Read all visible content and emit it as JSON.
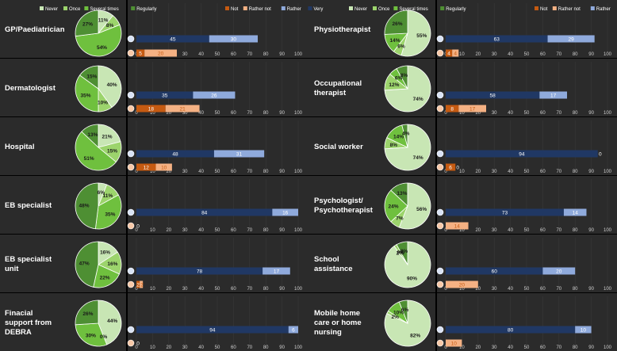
{
  "legends": {
    "pie": [
      {
        "label": "Never",
        "color": "#c8e6b4"
      },
      {
        "label": "Once",
        "color": "#9cd46c"
      },
      {
        "label": "Several times",
        "color": "#6fc03e"
      },
      {
        "label": "Regularly",
        "color": "#4e8f33"
      }
    ],
    "bar": [
      {
        "label": "Not",
        "color": "#c55a11"
      },
      {
        "label": "Rather not",
        "color": "#f4b183"
      },
      {
        "label": "Rather",
        "color": "#8faadc"
      },
      {
        "label": "Very",
        "color": "#203864"
      }
    ]
  },
  "axis_ticks": [
    "0",
    "10",
    "20",
    "30",
    "40",
    "50",
    "60",
    "70",
    "80",
    "90",
    "100"
  ],
  "colors": {
    "never": "#c8e6b4",
    "once": "#9cd46c",
    "several": "#6fc03e",
    "regularly": "#4e8f33",
    "not": "#c55a11",
    "rather_not": "#f4b183",
    "rather": "#8faadc",
    "very": "#203864",
    "panel": "#2b2b2b",
    "axis_text": "#cfcfcf",
    "label_text": "#ffffff"
  },
  "chart_data": [
    {
      "type": "pie+bar",
      "title": "GP/Paediatrician",
      "pie": {
        "never": 11,
        "once": 8,
        "several": 54,
        "regularly": 27,
        "labels": [
          "11%",
          "8%",
          "54%",
          "27%"
        ]
      },
      "bars": {
        "very": 45,
        "rather": 30,
        "not": 5,
        "rather_not": 20
      },
      "bar_labels": {
        "very": "45",
        "rather": "30",
        "not": "5",
        "rather_not": "20"
      },
      "xlim": [
        0,
        100
      ]
    },
    {
      "type": "pie+bar",
      "title": "Dermatologist",
      "pie": {
        "never": 40,
        "once": 10,
        "several": 35,
        "regularly": 15,
        "labels": [
          "40%",
          "10%",
          "35%",
          "15%"
        ]
      },
      "bars": {
        "very": 35,
        "rather": 26,
        "not": 18,
        "rather_not": 21
      },
      "bar_labels": {
        "very": "35",
        "rather": "26",
        "not": "18",
        "rather_not": "21"
      },
      "xlim": [
        0,
        100
      ]
    },
    {
      "type": "pie+bar",
      "title": "Hospital",
      "pie": {
        "never": 21,
        "once": 15,
        "several": 51,
        "regularly": 13,
        "labels": [
          "21%",
          "15%",
          "51%",
          "13%"
        ]
      },
      "bars": {
        "very": 48,
        "rather": 31,
        "not": 12,
        "rather_not": 10
      },
      "bar_labels": {
        "very": "48",
        "rather": "31",
        "not": "12",
        "rather_not": "10"
      },
      "xlim": [
        0,
        100
      ]
    },
    {
      "type": "pie+bar",
      "title": "EB specialist",
      "pie": {
        "never": 6,
        "once": 11,
        "several": 35,
        "regularly": 48,
        "labels": [
          "6%",
          "11%",
          "35%",
          "48%"
        ]
      },
      "bars": {
        "very": 84,
        "rather": 16,
        "not": 0,
        "rather_not": 0
      },
      "bar_labels": {
        "very": "84",
        "rather": "16",
        "not": "0",
        "rather_not": ""
      },
      "xlim": [
        0,
        100
      ]
    },
    {
      "type": "pie+bar",
      "title": "EB specialist unit",
      "pie": {
        "never": 16,
        "once": 16,
        "several": 22,
        "regularly": 47,
        "labels": [
          "16%",
          "16%",
          "22%",
          "47%"
        ]
      },
      "bars": {
        "very": 78,
        "rather": 17,
        "not": 2,
        "rather_not": 2
      },
      "bar_labels": {
        "very": "78",
        "rather": "17",
        "not": "2",
        "rather_not": "2"
      },
      "xlim": [
        0,
        100
      ]
    },
    {
      "type": "pie+bar",
      "title": "Finacial support from DEBRA",
      "pie": {
        "never": 44,
        "once": 0,
        "several": 30,
        "regularly": 26,
        "labels": [
          "44%",
          "0%",
          "30%",
          "26%"
        ]
      },
      "bars": {
        "very": 94,
        "rather": 6,
        "not": 0,
        "rather_not": 0
      },
      "bar_labels": {
        "very": "94",
        "rather": "6",
        "not": "0",
        "rather_not": ""
      },
      "xlim": [
        0,
        100
      ]
    },
    {
      "type": "pie+bar",
      "title": "Physiotherapist",
      "pie": {
        "never": 55,
        "once": 6,
        "several": 14,
        "regularly": 26,
        "labels": [
          "55%",
          "6%",
          "14%",
          "26%"
        ]
      },
      "bars": {
        "very": 63,
        "rather": 29,
        "not": 4,
        "rather_not": 4
      },
      "bar_labels": {
        "very": "63",
        "rather": "29",
        "not": "4",
        "rather_not": "4"
      },
      "xlim": [
        0,
        100
      ]
    },
    {
      "type": "pie+bar",
      "title": "Occupational therapist",
      "pie": {
        "never": 74,
        "once": 12,
        "several": 6,
        "regularly": 8,
        "labels": [
          "74%",
          "12%",
          "6%",
          "8%"
        ]
      },
      "bars": {
        "very": 58,
        "rather": 17,
        "not": 8,
        "rather_not": 17
      },
      "bar_labels": {
        "very": "58",
        "rather": "17",
        "not": "8",
        "rather_not": "17"
      },
      "xlim": [
        0,
        100
      ]
    },
    {
      "type": "pie+bar",
      "title": "Social worker",
      "pie": {
        "never": 74,
        "once": 8,
        "several": 14,
        "regularly": 4,
        "labels": [
          "74%",
          "8%",
          "14%",
          "4%"
        ]
      },
      "bars": {
        "very": 94,
        "rather": 0,
        "not": 6,
        "rather_not": 0
      },
      "bar_labels": {
        "very": "94",
        "rather": "0",
        "not": "6",
        "rather_not": "0"
      },
      "xlim": [
        0,
        100
      ]
    },
    {
      "type": "pie+bar",
      "title": "Psychologist/ Psychotherapist",
      "pie": {
        "never": 56,
        "once": 7,
        "several": 24,
        "regularly": 13,
        "labels": [
          "56%",
          "7%",
          "24%",
          "13%"
        ]
      },
      "bars": {
        "very": 73,
        "rather": 14,
        "not": 0,
        "rather_not": 14
      },
      "bar_labels": {
        "very": "73",
        "rather": "14",
        "not": "0",
        "rather_not": "14"
      },
      "xlim": [
        0,
        100
      ]
    },
    {
      "type": "pie+bar",
      "title": "School assistance",
      "pie": {
        "never": 90,
        "once": 2,
        "several": 0,
        "regularly": 8,
        "labels": [
          "90%",
          "2%",
          "0%",
          "8%"
        ]
      },
      "bars": {
        "very": 60,
        "rather": 20,
        "not": 0,
        "rather_not": 20
      },
      "bar_labels": {
        "very": "60",
        "rather": "20",
        "not": "0",
        "rather_not": "20"
      },
      "xlim": [
        0,
        100
      ]
    },
    {
      "type": "pie+bar",
      "title": "Mobile home care or home nursing",
      "pie": {
        "never": 82,
        "once": 2,
        "several": 10,
        "regularly": 6,
        "labels": [
          "82%",
          "2%",
          "10%",
          "6%"
        ]
      },
      "bars": {
        "very": 80,
        "rather": 10,
        "not": 0,
        "rather_not": 10
      },
      "bar_labels": {
        "very": "80",
        "rather": "10",
        "not": "0",
        "rather_not": "10"
      },
      "xlim": [
        0,
        100
      ]
    }
  ]
}
